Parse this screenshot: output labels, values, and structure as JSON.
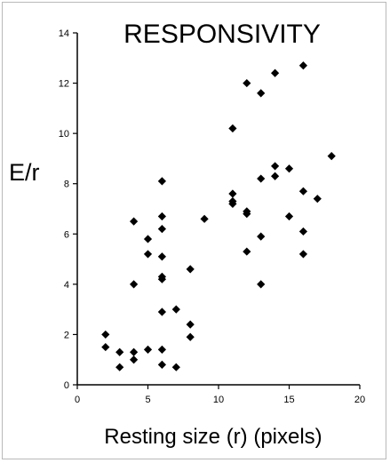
{
  "chart_data": {
    "type": "scatter",
    "title": "RESPONSIVITY",
    "xlabel": "Resting size (r) (pixels)",
    "ylabel": "E/r",
    "xlim": [
      0,
      20
    ],
    "ylim": [
      0,
      14
    ],
    "x_ticks": [
      0,
      5,
      10,
      15,
      20
    ],
    "y_ticks": [
      0,
      2,
      4,
      6,
      8,
      10,
      12,
      14
    ],
    "grid": false,
    "marker_color": "#000000",
    "points": [
      [
        2,
        2.0
      ],
      [
        2,
        1.5
      ],
      [
        3,
        1.3
      ],
      [
        3,
        0.7
      ],
      [
        4,
        6.5
      ],
      [
        4,
        4.0
      ],
      [
        4,
        1.3
      ],
      [
        4,
        1.0
      ],
      [
        5,
        5.8
      ],
      [
        5,
        5.2
      ],
      [
        5,
        1.4
      ],
      [
        6,
        8.1
      ],
      [
        6,
        6.7
      ],
      [
        6,
        6.2
      ],
      [
        6,
        5.1
      ],
      [
        6,
        4.3
      ],
      [
        6,
        4.2
      ],
      [
        6,
        2.9
      ],
      [
        6,
        1.4
      ],
      [
        6,
        0.8
      ],
      [
        7,
        3.0
      ],
      [
        7,
        0.7
      ],
      [
        8,
        4.6
      ],
      [
        8,
        2.4
      ],
      [
        8,
        1.9
      ],
      [
        9,
        6.6
      ],
      [
        11,
        10.2
      ],
      [
        11,
        7.6
      ],
      [
        11,
        7.3
      ],
      [
        11,
        7.2
      ],
      [
        12,
        12.0
      ],
      [
        12,
        6.9
      ],
      [
        12,
        6.8
      ],
      [
        12,
        5.3
      ],
      [
        13,
        11.6
      ],
      [
        13,
        8.2
      ],
      [
        13,
        5.9
      ],
      [
        13,
        4.0
      ],
      [
        14,
        12.4
      ],
      [
        14,
        8.7
      ],
      [
        14,
        8.3
      ],
      [
        15,
        8.6
      ],
      [
        15,
        6.7
      ],
      [
        16,
        12.7
      ],
      [
        16,
        7.7
      ],
      [
        16,
        6.1
      ],
      [
        16,
        5.2
      ],
      [
        17,
        7.4
      ],
      [
        18,
        9.1
      ]
    ]
  }
}
